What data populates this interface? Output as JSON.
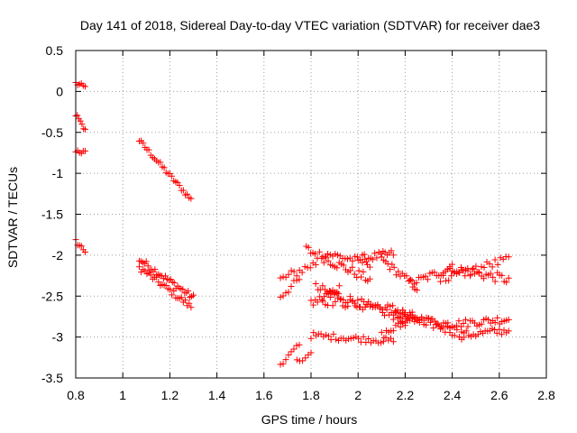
{
  "chart_data": {
    "type": "scatter",
    "title": "Day 141 of 2018, Sidereal Day-to-day VTEC variation (SDTVAR) for receiver dae3",
    "xlabel": "GPS time / hours",
    "ylabel": "SDTVAR / TECUs",
    "xlim": [
      0.8,
      2.8
    ],
    "ylim": [
      -3.5,
      0.5
    ],
    "xticks": [
      "0.8",
      "1",
      "1.2",
      "1.4",
      "1.6",
      "1.8",
      "2",
      "2.2",
      "2.4",
      "2.6",
      "2.8"
    ],
    "yticks": [
      "0.5",
      "0",
      "-0.5",
      "-1",
      "-1.5",
      "-2",
      "-2.5",
      "-3",
      "-3.5"
    ],
    "grid": true,
    "marker": "+",
    "colors": {
      "points": "#ff0000",
      "axes": "#000000",
      "grid": "#a0a0a0"
    },
    "segments": [
      {
        "x0": 0.8,
        "x1": 0.84,
        "y0": 0.1,
        "y1": 0.05,
        "n": 6,
        "noise": 0.03
      },
      {
        "x0": 0.8,
        "x1": 0.84,
        "y0": -0.28,
        "y1": -0.48,
        "n": 7,
        "noise": 0.03
      },
      {
        "x0": 0.8,
        "x1": 0.84,
        "y0": -0.72,
        "y1": -0.75,
        "n": 6,
        "noise": 0.03
      },
      {
        "x0": 0.8,
        "x1": 0.84,
        "y0": -1.83,
        "y1": -1.95,
        "n": 6,
        "noise": 0.03
      },
      {
        "x0": 1.07,
        "x1": 1.29,
        "y0": -0.6,
        "y1": -1.32,
        "n": 28,
        "noise": 0.03
      },
      {
        "x0": 1.07,
        "x1": 1.3,
        "y0": -2.05,
        "y1": -2.52,
        "n": 32,
        "noise": 0.04
      },
      {
        "x0": 1.07,
        "x1": 1.29,
        "y0": -2.15,
        "y1": -2.63,
        "n": 28,
        "noise": 0.04
      },
      {
        "x0": 1.67,
        "x1": 1.75,
        "y0": -3.33,
        "y1": -3.1,
        "n": 8,
        "noise": 0.03
      },
      {
        "x0": 1.74,
        "x1": 1.8,
        "y0": -3.3,
        "y1": -3.2,
        "n": 6,
        "noise": 0.03
      },
      {
        "x0": 1.67,
        "x1": 1.82,
        "y0": -2.3,
        "y1": -2.1,
        "n": 14,
        "noise": 0.06
      },
      {
        "x0": 1.67,
        "x1": 1.75,
        "y0": -2.5,
        "y1": -2.3,
        "n": 8,
        "noise": 0.05
      },
      {
        "x0": 1.78,
        "x1": 2.05,
        "y0": -1.93,
        "y1": -2.3,
        "n": 30,
        "noise": 0.06
      },
      {
        "x0": 1.8,
        "x1": 1.92,
        "y0": -2.6,
        "y1": -2.4,
        "n": 14,
        "noise": 0.05
      },
      {
        "x0": 1.85,
        "x1": 2.05,
        "y0": -1.97,
        "y1": -2.1,
        "n": 20,
        "noise": 0.05
      },
      {
        "x0": 2.0,
        "x1": 2.15,
        "y0": -2.05,
        "y1": -1.98,
        "n": 18,
        "noise": 0.05
      },
      {
        "x0": 2.1,
        "x1": 2.25,
        "y0": -2.05,
        "y1": -2.4,
        "n": 18,
        "noise": 0.05
      },
      {
        "x0": 2.22,
        "x1": 2.4,
        "y0": -2.35,
        "y1": -2.15,
        "n": 20,
        "noise": 0.05
      },
      {
        "x0": 2.38,
        "x1": 2.64,
        "y0": -2.15,
        "y1": -2.3,
        "n": 28,
        "noise": 0.06
      },
      {
        "x0": 1.82,
        "x1": 2.2,
        "y0": -2.4,
        "y1": -2.78,
        "n": 40,
        "noise": 0.06
      },
      {
        "x0": 2.15,
        "x1": 2.4,
        "y0": -2.75,
        "y1": -2.85,
        "n": 28,
        "noise": 0.05
      },
      {
        "x0": 2.38,
        "x1": 2.64,
        "y0": -2.85,
        "y1": -2.78,
        "n": 28,
        "noise": 0.05
      },
      {
        "x0": 1.85,
        "x1": 2.2,
        "y0": -2.55,
        "y1": -2.68,
        "n": 34,
        "noise": 0.06
      },
      {
        "x0": 2.18,
        "x1": 2.45,
        "y0": -2.7,
        "y1": -2.98,
        "n": 28,
        "noise": 0.06
      },
      {
        "x0": 2.43,
        "x1": 2.64,
        "y0": -2.98,
        "y1": -2.92,
        "n": 22,
        "noise": 0.05
      },
      {
        "x0": 1.8,
        "x1": 2.15,
        "y0": -2.98,
        "y1": -3.05,
        "n": 34,
        "noise": 0.04
      },
      {
        "x0": 2.1,
        "x1": 2.25,
        "y0": -2.98,
        "y1": -2.75,
        "n": 16,
        "noise": 0.05
      },
      {
        "x0": 2.35,
        "x1": 2.64,
        "y0": -2.3,
        "y1": -2.05,
        "n": 26,
        "noise": 0.06
      }
    ]
  }
}
